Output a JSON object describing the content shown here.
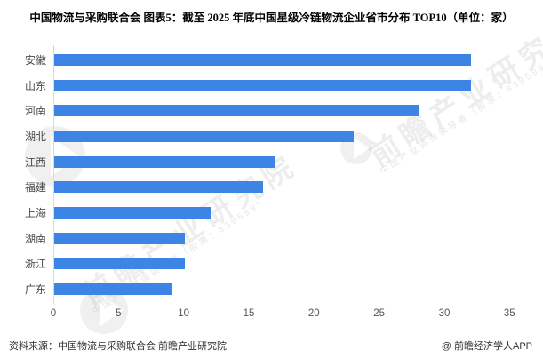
{
  "title": "中国物流与采购联合会 图表5：截至 2025 年底中国星级冷链物流企业省市分布 TOP10（单位：家）",
  "footer": {
    "source": "资料来源：中国物流与采购联合会 前瞻产业研究院",
    "credit": "@ 前瞻经济学人APP"
  },
  "watermark": {
    "main_text": "前瞻产业研究院",
    "sub_text": "中国产业咨询领导者（股票：839599）"
  },
  "colors": {
    "bar": "#3d85e4",
    "axis_line": "#d9d9d9",
    "category_label": "#4a4a4a",
    "tick_label": "#555555",
    "title": "#000000",
    "footer": "#2f2f2f"
  },
  "chart_data": {
    "type": "bar",
    "orientation": "horizontal",
    "title": "截至 2025 年底中国星级冷链物流企业省市分布 TOP10",
    "unit": "家",
    "categories": [
      "安徽",
      "山东",
      "河南",
      "湖北",
      "江西",
      "福建",
      "上海",
      "湖南",
      "浙江",
      "广东"
    ],
    "values": [
      32,
      32,
      28,
      23,
      17,
      16,
      12,
      10,
      10,
      9
    ],
    "xlim": [
      0,
      35
    ],
    "xticks": [
      0,
      5,
      10,
      15,
      20,
      25,
      30,
      35
    ],
    "grid": false,
    "legend": false
  }
}
